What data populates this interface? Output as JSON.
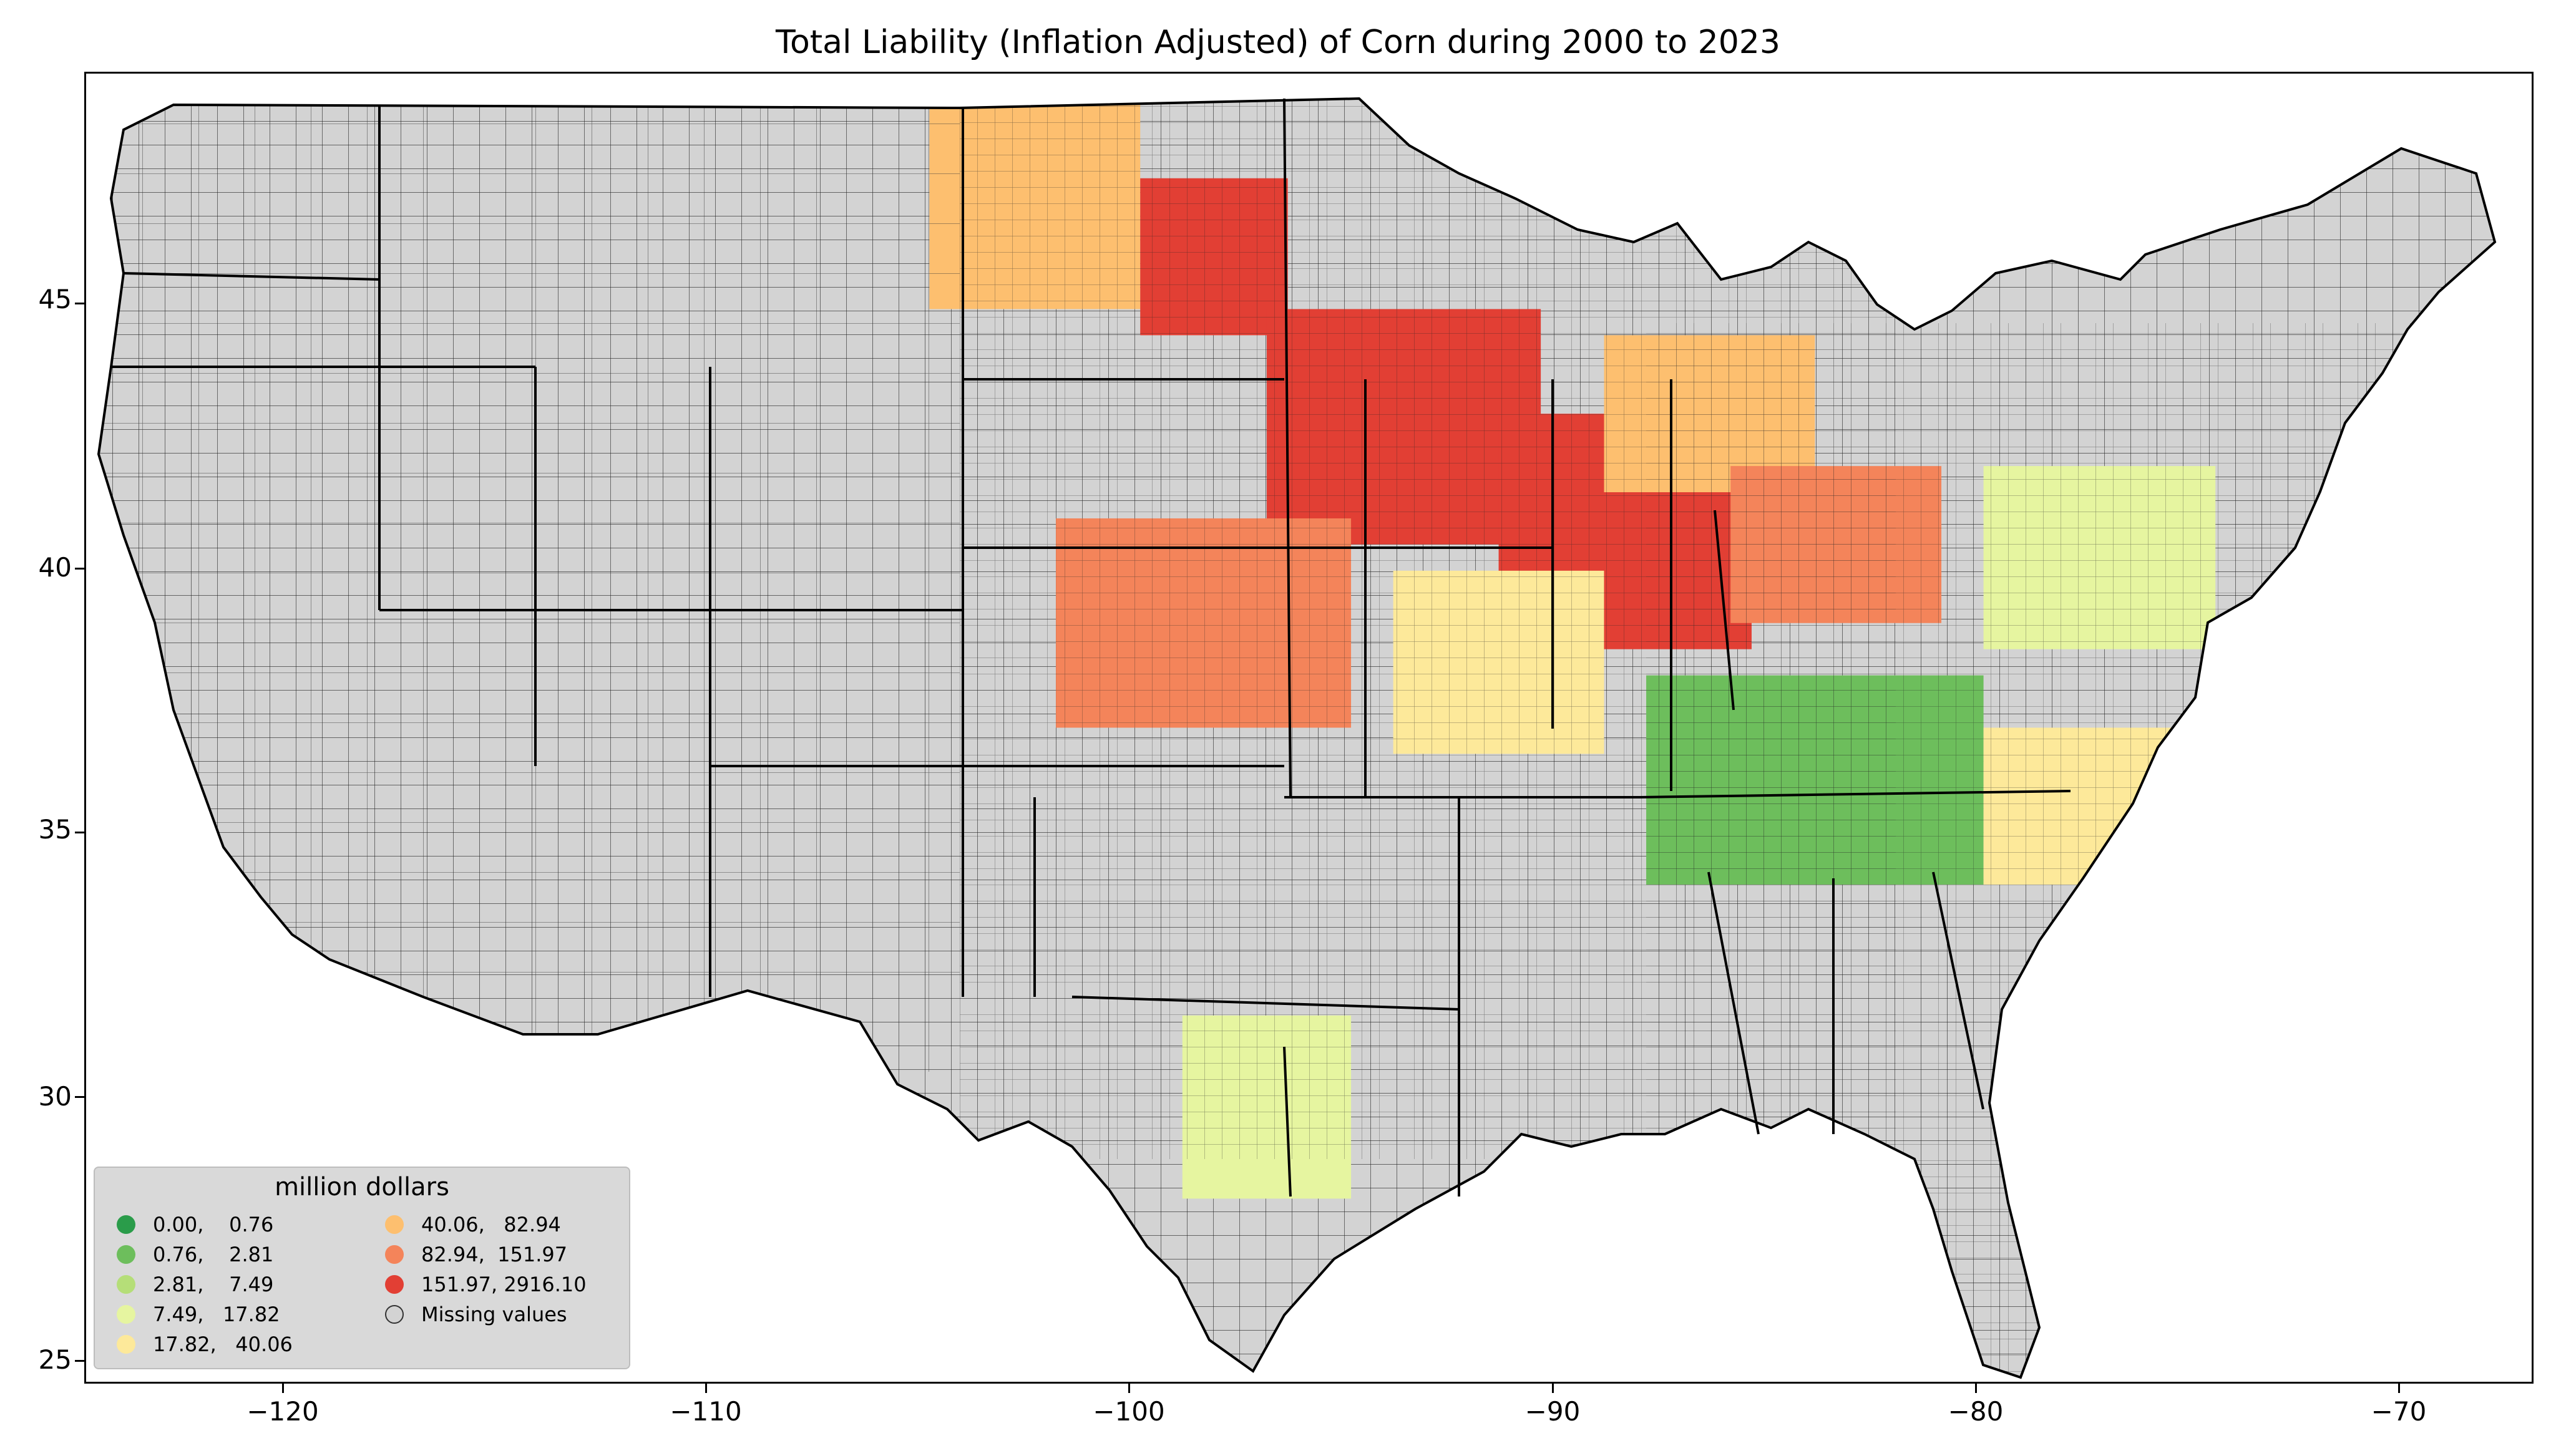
{
  "title": "Total Liability  (Inflation Adjusted) of Corn during 2000 to 2023",
  "map": {
    "lon_range": [
      -125,
      -67
    ],
    "lat_range": [
      24.5,
      49.5
    ],
    "missing_color": "#d3d3d3",
    "border_color": "#000000"
  },
  "axes": {
    "x_ticks": [
      "−120",
      "−110",
      "−100",
      "−90",
      "−80",
      "−70"
    ],
    "x_tick_values": [
      -120,
      -110,
      -100,
      -90,
      -80,
      -70
    ],
    "y_ticks": [
      "25",
      "30",
      "35",
      "40",
      "45"
    ],
    "y_tick_values": [
      25,
      30,
      35,
      40,
      45
    ]
  },
  "legend": {
    "title": "million dollars",
    "items": [
      {
        "label": "0.00,    0.76",
        "color": "#2a9c4a"
      },
      {
        "label": "0.76,    2.81",
        "color": "#6dbe5c"
      },
      {
        "label": "2.81,    7.49",
        "color": "#b5de78"
      },
      {
        "label": "7.49,   17.82",
        "color": "#e6f5a0"
      },
      {
        "label": "17.82,   40.06",
        "color": "#fde99a"
      },
      {
        "label": "40.06,   82.94",
        "color": "#fdbf6f"
      },
      {
        "label": "82.94,  151.97",
        "color": "#f4845a"
      },
      {
        "label": "151.97, 2916.10",
        "color": "#e23f34"
      },
      {
        "label": "Missing values",
        "color": "#d3d3d3"
      }
    ]
  },
  "chart_data": {
    "type": "choropleth",
    "title": "Total Liability  (Inflation Adjusted) of Corn during 2000 to 2023",
    "legend_title": "million dollars",
    "classes": [
      {
        "range": [
          0.0,
          0.76
        ],
        "color": "#2a9c4a"
      },
      {
        "range": [
          0.76,
          2.81
        ],
        "color": "#6dbe5c"
      },
      {
        "range": [
          2.81,
          7.49
        ],
        "color": "#b5de78"
      },
      {
        "range": [
          7.49,
          17.82
        ],
        "color": "#e6f5a0"
      },
      {
        "range": [
          17.82,
          40.06
        ],
        "color": "#fde99a"
      },
      {
        "range": [
          40.06,
          82.94
        ],
        "color": "#fdbf6f"
      },
      {
        "range": [
          82.94,
          151.97
        ],
        "color": "#f4845a"
      },
      {
        "range": [
          151.97,
          2916.1
        ],
        "color": "#e23f34"
      }
    ],
    "xlim": [
      -125,
      -67
    ],
    "ylim": [
      24.5,
      49.5
    ],
    "legend_position": "lower-left",
    "regions": [
      {
        "bbox_lon": [
          -105,
          -100
        ],
        "bbox_lat": [
          45,
          49
        ],
        "class": 5
      },
      {
        "bbox_lon": [
          -100,
          -96.5
        ],
        "bbox_lat": [
          44.5,
          47.5
        ],
        "class": 7
      },
      {
        "bbox_lon": [
          -97,
          -90.5
        ],
        "bbox_lat": [
          40.5,
          45
        ],
        "class": 7
      },
      {
        "bbox_lon": [
          -91.5,
          -85.5
        ],
        "bbox_lat": [
          38.5,
          43
        ],
        "class": 7
      },
      {
        "bbox_lon": [
          -102,
          -95
        ],
        "bbox_lat": [
          37,
          41
        ],
        "class": 6
      },
      {
        "bbox_lon": [
          -89,
          -84
        ],
        "bbox_lat": [
          41.5,
          44.5
        ],
        "class": 5
      },
      {
        "bbox_lon": [
          -86,
          -81
        ],
        "bbox_lat": [
          39,
          42
        ],
        "class": 6
      },
      {
        "bbox_lon": [
          -99,
          -95
        ],
        "bbox_lat": [
          28,
          31.5
        ],
        "class": 3
      },
      {
        "bbox_lon": [
          -94,
          -89
        ],
        "bbox_lat": [
          36.5,
          40
        ],
        "class": 4
      },
      {
        "bbox_lon": [
          -88,
          -80
        ],
        "bbox_lat": [
          34,
          38
        ],
        "class": 1
      },
      {
        "bbox_lon": [
          -80,
          -75.5
        ],
        "bbox_lat": [
          34,
          37
        ],
        "class": 4
      },
      {
        "bbox_lon": [
          -80,
          -74.5
        ],
        "bbox_lat": [
          38.5,
          42
        ],
        "class": 3
      }
    ]
  }
}
